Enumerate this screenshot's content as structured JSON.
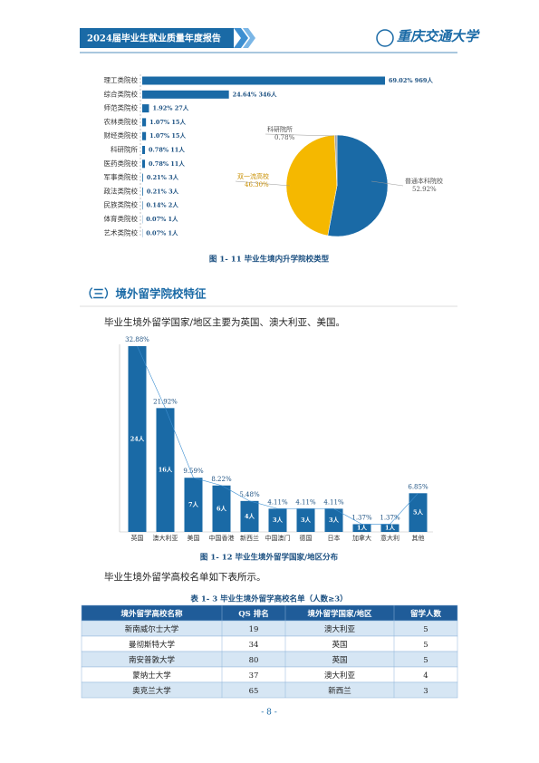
{
  "header": {
    "title": "2024届毕业生就业质量年度报告",
    "logo": "重庆交通大学"
  },
  "figure1": {
    "bar": {
      "type": "bar",
      "orientation": "horizontal",
      "color": "#1a6aa6",
      "categories": [
        "理工类院校",
        "综合类院校",
        "师范类院校",
        "农林类院校",
        "财经类院校",
        "科研院所",
        "医药类院校",
        "军事类院校",
        "政法类院校",
        "民族类院校",
        "体育类院校",
        "艺术类院校"
      ],
      "values": [
        69.02,
        24.64,
        1.92,
        1.07,
        1.07,
        0.78,
        0.78,
        0.21,
        0.21,
        0.14,
        0.07,
        0.07
      ],
      "value_labels": [
        "69.02% 969人",
        "24.64% 346人",
        "1.92% 27人",
        "1.07% 15人",
        "1.07% 15人",
        "0.78% 11人",
        "0.78% 11人",
        "0.21% 3人",
        "0.21% 3人",
        "0.14% 2人",
        "0.07% 1人",
        "0.07% 1人"
      ]
    },
    "pie": {
      "type": "pie",
      "categories": [
        "普通本科院校",
        "双一流高校",
        "科研院所"
      ],
      "values": [
        52.92,
        46.3,
        0.78
      ],
      "value_labels": [
        "52.92%",
        "46.30%",
        "0.78%"
      ],
      "colors": [
        "#1a6aa6",
        "#f5b800",
        "#a6a6a6"
      ]
    },
    "caption": "图 1- 11 毕业生境内升学院校类型"
  },
  "section_heading": "（三）境外留学院校特征",
  "paragraph1": "毕业生境外留学国家/地区主要为英国、澳大利亚、美国。",
  "figure2": {
    "type": "bar",
    "color": "#1a6aa6",
    "categories": [
      "英国",
      "澳大利亚",
      "美国",
      "中国香港",
      "新西兰",
      "中国澳门",
      "德国",
      "日本",
      "加拿大",
      "意大利",
      "其他"
    ],
    "values": [
      32.88,
      21.92,
      9.59,
      8.22,
      5.48,
      4.11,
      4.11,
      4.11,
      1.37,
      1.37,
      6.85
    ],
    "value_labels": [
      "32.88%",
      "21.92%",
      "9.59%",
      "8.22%",
      "5.48%",
      "4.11%",
      "4.11%",
      "4.11%",
      "1.37%",
      "1.37%",
      "6.85%"
    ],
    "counts": [
      24,
      16,
      7,
      6,
      4,
      3,
      3,
      3,
      1,
      1,
      5
    ],
    "count_labels": [
      "24人",
      "16人",
      "7人",
      "6人",
      "4人",
      "3人",
      "3人",
      "3人",
      "1人",
      "1人",
      "5人"
    ],
    "caption": "图 1- 12 毕业生境外留学国家/地区分布"
  },
  "paragraph2": "毕业生境外留学高校名单如下表所示。",
  "table": {
    "caption": "表 1- 3 毕业生境外留学高校名单（人数≥3）",
    "header": [
      "境外留学高校名称",
      "QS 排名",
      "境外留学国家/地区",
      "留学人数"
    ],
    "rows": [
      [
        "新南威尔士大学",
        19,
        "澳大利亚",
        5
      ],
      [
        "曼彻斯特大学",
        34,
        "英国",
        5
      ],
      [
        "南安普敦大学",
        80,
        "英国",
        5
      ],
      [
        "蒙纳士大学",
        37,
        "澳大利亚",
        4
      ],
      [
        "奥克兰大学",
        65,
        "新西兰",
        3
      ]
    ]
  },
  "footer": "- 8 -"
}
